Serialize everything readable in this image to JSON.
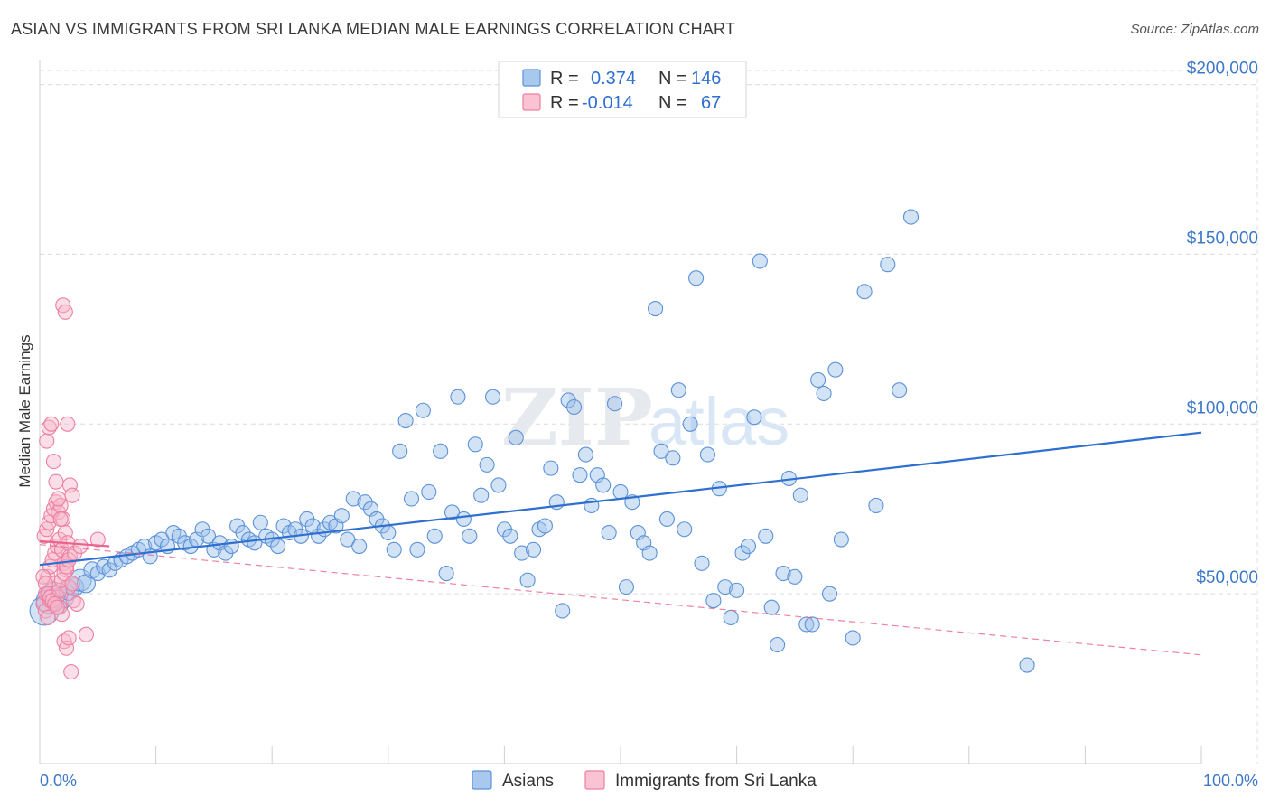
{
  "title": "ASIAN VS IMMIGRANTS FROM SRI LANKA MEDIAN MALE EARNINGS CORRELATION CHART",
  "source": "Source: ZipAtlas.com",
  "watermark": {
    "part1": "ZIP",
    "part2": "atlas"
  },
  "chart_data": {
    "type": "scatter",
    "ylabel": "Median Male Earnings",
    "xlim": [
      0,
      100
    ],
    "ylim": [
      0,
      210000
    ],
    "x_tick_labels": {
      "left": "0.0%",
      "right": "100.0%"
    },
    "y_ticks": [
      {
        "value": 50000,
        "label": "$50,000"
      },
      {
        "value": 100000,
        "label": "$100,000"
      },
      {
        "value": 150000,
        "label": "$150,000"
      },
      {
        "value": 200000,
        "label": "$200,000"
      }
    ],
    "grid": true,
    "legend_position": "bottom-center",
    "stats": [
      {
        "r_label": "R =",
        "r": "0.374",
        "n_label": "N =",
        "n": "146"
      },
      {
        "r_label": "R =",
        "r": "-0.014",
        "n_label": "N =",
        "n": "67"
      }
    ],
    "series": [
      {
        "name": "Asians",
        "color": "#9dc1ec",
        "stroke": "#5b92d8",
        "trend": {
          "x": [
            0,
            100
          ],
          "y": [
            58500,
            97500
          ],
          "color": "#2f6fd0",
          "style": "solid"
        },
        "points": [
          [
            0.4,
            45000,
            16
          ],
          [
            0.8,
            48000,
            14
          ],
          [
            1.2,
            50000,
            13
          ],
          [
            1.6,
            47000,
            11
          ],
          [
            2.0,
            49000,
            12
          ],
          [
            2.5,
            51000,
            11
          ],
          [
            3.0,
            52000,
            10
          ],
          [
            3.5,
            54000,
            12
          ],
          [
            4.0,
            53000,
            10
          ],
          [
            4.5,
            57000,
            9
          ],
          [
            5.0,
            56000,
            8
          ],
          [
            5.5,
            58000,
            8
          ],
          [
            6.0,
            57000,
            8
          ],
          [
            6.5,
            59000,
            8
          ],
          [
            7.0,
            60000,
            8
          ],
          [
            7.5,
            61000,
            8
          ],
          [
            8.0,
            62000,
            8
          ],
          [
            8.5,
            63000,
            8
          ],
          [
            9.0,
            64000,
            8
          ],
          [
            9.5,
            61000,
            8
          ],
          [
            10.0,
            65000,
            8
          ],
          [
            10.5,
            66000,
            8
          ],
          [
            11.0,
            64000,
            8
          ],
          [
            11.5,
            68000,
            8
          ],
          [
            12.0,
            67000,
            8
          ],
          [
            12.5,
            65000,
            8
          ],
          [
            13.0,
            64000,
            8
          ],
          [
            13.5,
            66000,
            8
          ],
          [
            14.0,
            69000,
            8
          ],
          [
            14.5,
            67000,
            8
          ],
          [
            15.0,
            63000,
            8
          ],
          [
            15.5,
            65000,
            8
          ],
          [
            16.0,
            62000,
            8
          ],
          [
            16.5,
            64000,
            8
          ],
          [
            17.0,
            70000,
            8
          ],
          [
            17.5,
            68000,
            8
          ],
          [
            18.0,
            66000,
            8
          ],
          [
            18.5,
            65000,
            8
          ],
          [
            19.0,
            71000,
            8
          ],
          [
            19.5,
            67000,
            8
          ],
          [
            20.0,
            66000,
            8
          ],
          [
            20.5,
            64000,
            8
          ],
          [
            21.0,
            70000,
            8
          ],
          [
            21.5,
            68000,
            8
          ],
          [
            22.0,
            69000,
            8
          ],
          [
            22.5,
            67000,
            8
          ],
          [
            23.0,
            72000,
            8
          ],
          [
            23.5,
            70000,
            8
          ],
          [
            24.0,
            67000,
            8
          ],
          [
            24.5,
            69000,
            8
          ],
          [
            25.0,
            71000,
            8
          ],
          [
            25.5,
            70000,
            8
          ],
          [
            26.0,
            73000,
            8
          ],
          [
            26.5,
            66000,
            8
          ],
          [
            27.0,
            78000,
            8
          ],
          [
            27.5,
            64000,
            8
          ],
          [
            28.0,
            77000,
            8
          ],
          [
            28.5,
            75000,
            8
          ],
          [
            29.0,
            72000,
            8
          ],
          [
            29.5,
            70000,
            8
          ],
          [
            30.0,
            68000,
            8
          ],
          [
            30.5,
            63000,
            8
          ],
          [
            31.0,
            92000,
            8
          ],
          [
            31.5,
            101000,
            8
          ],
          [
            32.0,
            78000,
            8
          ],
          [
            32.5,
            63000,
            8
          ],
          [
            33.0,
            104000,
            8
          ],
          [
            33.5,
            80000,
            8
          ],
          [
            34.0,
            67000,
            8
          ],
          [
            34.5,
            92000,
            8
          ],
          [
            35.0,
            56000,
            8
          ],
          [
            35.5,
            74000,
            8
          ],
          [
            36.0,
            108000,
            8
          ],
          [
            36.5,
            72000,
            8
          ],
          [
            37.0,
            67000,
            8
          ],
          [
            37.5,
            94000,
            8
          ],
          [
            38.0,
            79000,
            8
          ],
          [
            38.5,
            88000,
            8
          ],
          [
            39.0,
            108000,
            8
          ],
          [
            39.5,
            82000,
            8
          ],
          [
            40.0,
            69000,
            8
          ],
          [
            40.5,
            67000,
            8
          ],
          [
            41.0,
            96000,
            8
          ],
          [
            41.5,
            62000,
            8
          ],
          [
            42.0,
            54000,
            8
          ],
          [
            42.5,
            63000,
            8
          ],
          [
            43.0,
            69000,
            8
          ],
          [
            43.5,
            70000,
            8
          ],
          [
            44.0,
            87000,
            8
          ],
          [
            44.5,
            77000,
            8
          ],
          [
            45.0,
            45000,
            8
          ],
          [
            45.5,
            107000,
            8
          ],
          [
            46.0,
            105000,
            8
          ],
          [
            46.5,
            85000,
            8
          ],
          [
            47.0,
            91000,
            8
          ],
          [
            47.5,
            76000,
            8
          ],
          [
            48.0,
            85000,
            8
          ],
          [
            48.5,
            82000,
            8
          ],
          [
            49.0,
            68000,
            8
          ],
          [
            49.5,
            106000,
            8
          ],
          [
            50.0,
            80000,
            8
          ],
          [
            50.5,
            52000,
            8
          ],
          [
            51.0,
            77000,
            8
          ],
          [
            51.5,
            68000,
            8
          ],
          [
            52.0,
            65000,
            8
          ],
          [
            52.5,
            62000,
            8
          ],
          [
            53.0,
            134000,
            8
          ],
          [
            53.5,
            92000,
            8
          ],
          [
            54.0,
            72000,
            8
          ],
          [
            54.5,
            90000,
            8
          ],
          [
            55.0,
            110000,
            8
          ],
          [
            55.5,
            69000,
            8
          ],
          [
            56.0,
            100000,
            8
          ],
          [
            56.5,
            143000,
            8
          ],
          [
            57.0,
            59000,
            8
          ],
          [
            57.5,
            91000,
            8
          ],
          [
            58.0,
            48000,
            8
          ],
          [
            58.5,
            81000,
            8
          ],
          [
            59.0,
            52000,
            8
          ],
          [
            59.5,
            43000,
            8
          ],
          [
            60.0,
            51000,
            8
          ],
          [
            60.5,
            62000,
            8
          ],
          [
            61.0,
            64000,
            8
          ],
          [
            61.5,
            102000,
            8
          ],
          [
            62.0,
            148000,
            8
          ],
          [
            62.5,
            67000,
            8
          ],
          [
            63.0,
            46000,
            8
          ],
          [
            63.5,
            35000,
            8
          ],
          [
            64.0,
            56000,
            8
          ],
          [
            64.5,
            84000,
            8
          ],
          [
            65.0,
            55000,
            8
          ],
          [
            65.5,
            79000,
            8
          ],
          [
            66.0,
            41000,
            8
          ],
          [
            66.5,
            41000,
            8
          ],
          [
            67.0,
            113000,
            8
          ],
          [
            67.5,
            109000,
            8
          ],
          [
            68.0,
            50000,
            8
          ],
          [
            68.5,
            116000,
            8
          ],
          [
            69.0,
            66000,
            8
          ],
          [
            70.0,
            37000,
            8
          ],
          [
            71.0,
            139000,
            8
          ],
          [
            72.0,
            76000,
            8
          ],
          [
            73.0,
            147000,
            8
          ],
          [
            74.0,
            110000,
            8
          ],
          [
            75.0,
            161000,
            8
          ],
          [
            85.0,
            29000,
            8
          ]
        ]
      },
      {
        "name": "Immigrants from Sri Lanka",
        "color": "#f7b7cb",
        "stroke": "#ee7fa0",
        "trend": {
          "x": [
            0,
            6
          ],
          "y": [
            65500,
            64000
          ],
          "color": "#e8638f",
          "style": "solid"
        },
        "trend_ext": {
          "x": [
            0,
            100
          ],
          "y": [
            64500,
            32000
          ],
          "color": "#e8638f",
          "style": "dashed"
        },
        "points": [
          [
            0.3,
            47000,
            8
          ],
          [
            0.5,
            50000,
            8
          ],
          [
            0.7,
            55000,
            8
          ],
          [
            0.9,
            58000,
            8
          ],
          [
            1.1,
            60000,
            8
          ],
          [
            1.3,
            62000,
            8
          ],
          [
            1.5,
            64000,
            8
          ],
          [
            1.7,
            66000,
            8
          ],
          [
            1.9,
            63000,
            8
          ],
          [
            2.1,
            59000,
            8
          ],
          [
            2.3,
            57000,
            8
          ],
          [
            2.5,
            52000,
            8
          ],
          [
            0.4,
            67000,
            8
          ],
          [
            0.6,
            69000,
            8
          ],
          [
            0.8,
            71000,
            8
          ],
          [
            1.0,
            73000,
            8
          ],
          [
            1.2,
            75000,
            8
          ],
          [
            1.4,
            77000,
            8
          ],
          [
            1.6,
            74000,
            8
          ],
          [
            1.8,
            76000,
            8
          ],
          [
            2.0,
            72000,
            8
          ],
          [
            2.2,
            68000,
            8
          ],
          [
            2.4,
            65000,
            8
          ],
          [
            2.6,
            61000,
            8
          ],
          [
            0.5,
            45000,
            8
          ],
          [
            0.7,
            43000,
            8
          ],
          [
            0.9,
            48000,
            8
          ],
          [
            1.1,
            50000,
            8
          ],
          [
            1.3,
            53000,
            8
          ],
          [
            1.5,
            49000,
            8
          ],
          [
            1.7,
            46000,
            8
          ],
          [
            1.9,
            44000,
            8
          ],
          [
            2.1,
            36000,
            8
          ],
          [
            2.3,
            34000,
            8
          ],
          [
            2.5,
            37000,
            8
          ],
          [
            2.7,
            27000,
            8
          ],
          [
            0.6,
            95000,
            8
          ],
          [
            0.8,
            99000,
            8
          ],
          [
            1.0,
            100000,
            8
          ],
          [
            1.2,
            89000,
            8
          ],
          [
            1.4,
            83000,
            8
          ],
          [
            1.6,
            78000,
            8
          ],
          [
            1.8,
            72000,
            8
          ],
          [
            2.0,
            135000,
            8
          ],
          [
            2.2,
            133000,
            8
          ],
          [
            2.4,
            100000,
            8
          ],
          [
            2.6,
            82000,
            8
          ],
          [
            2.8,
            79000,
            8
          ],
          [
            0.3,
            55000,
            8
          ],
          [
            0.5,
            53000,
            8
          ],
          [
            0.7,
            50000,
            8
          ],
          [
            0.9,
            49000,
            8
          ],
          [
            1.1,
            48000,
            8
          ],
          [
            1.3,
            47000,
            8
          ],
          [
            1.5,
            46000,
            8
          ],
          [
            1.7,
            51000,
            8
          ],
          [
            1.9,
            54000,
            8
          ],
          [
            2.1,
            56000,
            8
          ],
          [
            2.3,
            58000,
            8
          ],
          [
            2.5,
            60000,
            8
          ],
          [
            3.0,
            62000,
            8
          ],
          [
            3.5,
            64000,
            8
          ],
          [
            4.0,
            38000,
            8
          ],
          [
            5.0,
            66000,
            8
          ],
          [
            2.9,
            48000,
            8
          ],
          [
            3.2,
            47000,
            8
          ],
          [
            2.8,
            53000,
            8
          ]
        ]
      }
    ]
  }
}
